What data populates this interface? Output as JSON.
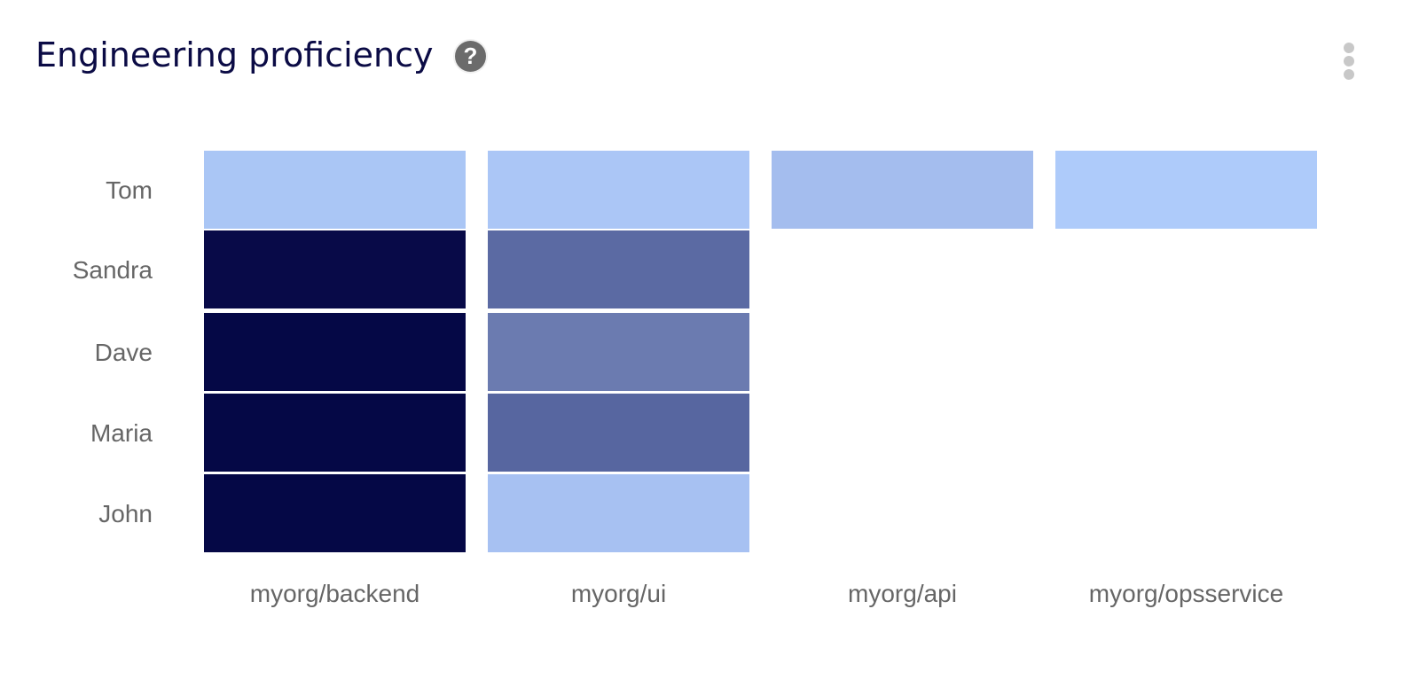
{
  "header": {
    "title": "Engineering proficiency",
    "help_icon": "question-circle-icon",
    "menu_icon": "more-vertical-icon"
  },
  "chart_data": {
    "type": "heatmap",
    "title": "Engineering proficiency",
    "rows": [
      "Tom",
      "Sandra",
      "Dave",
      "Maria",
      "John"
    ],
    "columns": [
      "myorg/backend",
      "myorg/ui",
      "myorg/api",
      "myorg/opsservice"
    ],
    "values": [
      [
        0.05,
        0.05,
        0.1,
        0.0
      ],
      [
        0.98,
        0.6,
        null,
        null
      ],
      [
        1.0,
        0.52,
        null,
        null
      ],
      [
        1.0,
        0.62,
        null,
        null
      ],
      [
        1.0,
        0.07,
        null,
        null
      ]
    ],
    "cell_colors": [
      [
        "#aac6f5",
        "#abc6f6",
        "#a4bdee",
        "#aecbfa"
      ],
      [
        "#080a48",
        "#5b6aa3",
        null,
        null
      ],
      [
        "#050846",
        "#6b7bb0",
        null,
        null
      ],
      [
        "#050846",
        "#5766a0",
        null,
        null
      ],
      [
        "#050846",
        "#a7c1f2",
        null,
        null
      ]
    ],
    "color_scale": {
      "low": "#aecbfa",
      "high": "#050846"
    },
    "grid": false,
    "legend": "none"
  }
}
